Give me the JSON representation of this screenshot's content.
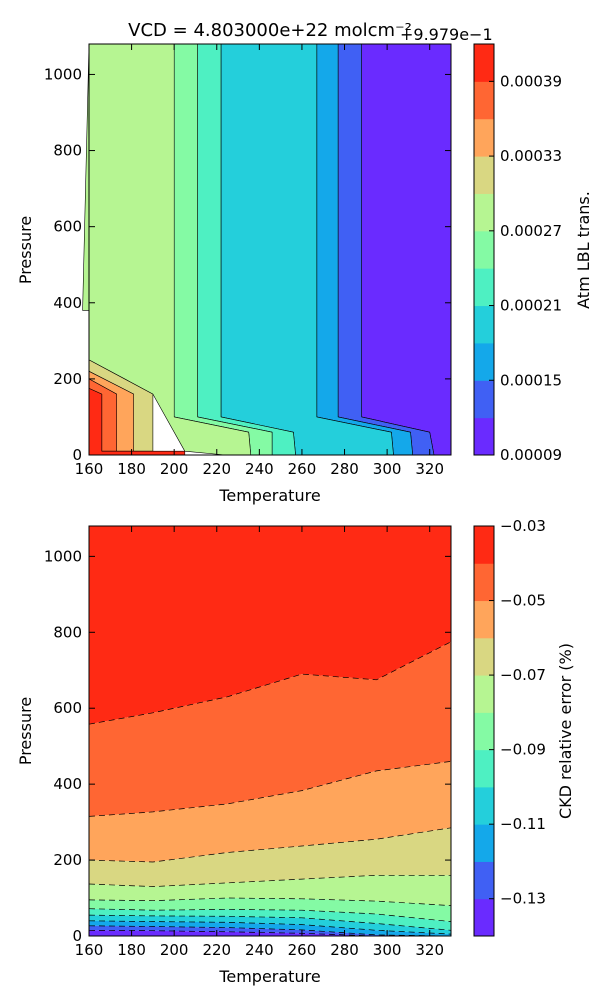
{
  "chart_data": [
    {
      "type": "heatmap",
      "title": "VCD = 4.803000e+22 molcm⁻²",
      "xlabel": "Temperature",
      "ylabel": "Pressure",
      "xlim": [
        160,
        330
      ],
      "ylim": [
        0,
        1080
      ],
      "xticks": [
        "160",
        "180",
        "200",
        "220",
        "240",
        "260",
        "280",
        "300",
        "320"
      ],
      "yticks": [
        "0",
        "200",
        "400",
        "600",
        "800",
        "1000"
      ],
      "colorbar": {
        "label": "Atm LBL trans.",
        "offset_text": "+9.979e−1",
        "levels": [
          9e-05,
          0.00012,
          0.00015,
          0.00018,
          0.00021,
          0.00024,
          0.00027,
          0.0003,
          0.00033,
          0.00036,
          0.00039,
          0.00042
        ],
        "tick_labels": [
          "0.00009",
          "0.00015",
          "0.00021",
          "0.00027",
          "0.00033",
          "0.00039"
        ],
        "colors": [
          "#6a2bff",
          "#4060f4",
          "#14a8ea",
          "#24cfdb",
          "#4ef0c2",
          "#84faa4",
          "#b6f592",
          "#d9d782",
          "#ffa55b",
          "#ff6633",
          "#ff2a14"
        ]
      },
      "bands": [
        {
          "level": 9e-05,
          "color": "#6a2bff",
          "area": [
            [
              288,
              1080
            ],
            [
              330,
              1080
            ],
            [
              330,
              0
            ],
            [
              322,
              0
            ],
            [
              320,
              60
            ],
            [
              288,
              100
            ]
          ]
        },
        {
          "level": 0.00012,
          "color": "#4060f4",
          "area": [
            [
              277,
              1080
            ],
            [
              288,
              1080
            ],
            [
              288,
              100
            ],
            [
              320,
              60
            ],
            [
              322,
              0
            ],
            [
              312,
              0
            ],
            [
              311,
              60
            ],
            [
              277,
              100
            ]
          ]
        },
        {
          "level": 0.00015,
          "color": "#14a8ea",
          "area": [
            [
              267,
              1080
            ],
            [
              277,
              1080
            ],
            [
              277,
              100
            ],
            [
              311,
              60
            ],
            [
              312,
              0
            ],
            [
              303,
              0
            ],
            [
              302,
              60
            ],
            [
              267,
              100
            ]
          ]
        },
        {
          "level": 0.00018,
          "color": "#24cfdb",
          "area": [
            [
              222,
              1080
            ],
            [
              267,
              1080
            ],
            [
              267,
              100
            ],
            [
              302,
              60
            ],
            [
              303,
              0
            ],
            [
              257,
              0
            ],
            [
              256,
              60
            ],
            [
              222,
              100
            ]
          ]
        },
        {
          "level": 0.00021,
          "color": "#4ef0c2",
          "area": [
            [
              211,
              1080
            ],
            [
              222,
              1080
            ],
            [
              222,
              100
            ],
            [
              256,
              60
            ],
            [
              257,
              0
            ],
            [
              246,
              0
            ],
            [
              246,
              60
            ],
            [
              211,
              100
            ]
          ]
        },
        {
          "level": 0.00024,
          "color": "#84faa4",
          "area": [
            [
              200,
              1080
            ],
            [
              211,
              1080
            ],
            [
              211,
              100
            ],
            [
              246,
              60
            ],
            [
              246,
              0
            ],
            [
              236,
              0
            ],
            [
              235,
              60
            ],
            [
              200,
              100
            ]
          ]
        },
        {
          "level": 0.00027,
          "color": "#b6f592",
          "area": [
            [
              160,
              1080
            ],
            [
              200,
              1080
            ],
            [
              200,
              100
            ],
            [
              235,
              60
            ],
            [
              236,
              0
            ],
            [
              224,
              0
            ],
            [
              205,
              10
            ],
            [
              190,
              160
            ],
            [
              160,
              250
            ],
            [
              160,
              380
            ],
            [
              157,
              380
            ]
          ]
        },
        {
          "level": 0.0003,
          "color": "#d9d782",
          "area": [
            [
              160,
              250
            ],
            [
              190,
              160
            ],
            [
              190,
              10
            ],
            [
              181,
              10
            ],
            [
              181,
              160
            ],
            [
              160,
              220
            ]
          ]
        },
        {
          "level": 0.00033,
          "color": "#ffa55b",
          "area": [
            [
              160,
              220
            ],
            [
              181,
              160
            ],
            [
              181,
              10
            ],
            [
              173,
              10
            ],
            [
              173,
              160
            ],
            [
              160,
              200
            ]
          ]
        },
        {
          "level": 0.00036,
          "color": "#ff6633",
          "area": [
            [
              160,
              200
            ],
            [
              173,
              160
            ],
            [
              173,
              10
            ],
            [
              166,
              10
            ],
            [
              166,
              160
            ],
            [
              160,
              175
            ]
          ]
        },
        {
          "level": 0.00039,
          "color": "#ff2a14",
          "area": [
            [
              160,
              175
            ],
            [
              166,
              160
            ],
            [
              166,
              10
            ],
            [
              205,
              10
            ],
            [
              205,
              0
            ],
            [
              160,
              0
            ]
          ]
        }
      ]
    },
    {
      "type": "heatmap",
      "xlabel": "Temperature",
      "ylabel": "Pressure",
      "xlim": [
        160,
        330
      ],
      "ylim": [
        0,
        1080
      ],
      "xticks": [
        "160",
        "180",
        "200",
        "220",
        "240",
        "260",
        "280",
        "300",
        "320"
      ],
      "yticks": [
        "0",
        "200",
        "400",
        "600",
        "800",
        "1000"
      ],
      "x": [
        160,
        190,
        225,
        260,
        295,
        330
      ],
      "colorbar": {
        "label": "CKD relative error (%)",
        "levels": [
          -0.14,
          -0.13,
          -0.12,
          -0.11,
          -0.1,
          -0.09,
          -0.08,
          -0.07,
          -0.06,
          -0.05,
          -0.04,
          -0.03
        ],
        "tick_labels": [
          "−0.13",
          "−0.11",
          "−0.09",
          "−0.07",
          "−0.05",
          "−0.03"
        ],
        "colors": [
          "#6a2bff",
          "#4060f4",
          "#14a8ea",
          "#24cfdb",
          "#4ef0c2",
          "#84faa4",
          "#b6f592",
          "#d9d782",
          "#ffa55b",
          "#ff6633",
          "#ff2a14"
        ]
      },
      "contours": [
        {
          "level": -0.04,
          "y": [
            558,
            588,
            630,
            690,
            675,
            775
          ]
        },
        {
          "level": -0.05,
          "y": [
            315,
            327,
            348,
            383,
            435,
            460
          ]
        },
        {
          "level": -0.06,
          "y": [
            200,
            195,
            220,
            237,
            255,
            285
          ]
        },
        {
          "level": -0.07,
          "y": [
            137,
            130,
            140,
            150,
            160,
            160
          ]
        },
        {
          "level": -0.08,
          "y": [
            95,
            93,
            100,
            98,
            92,
            80
          ]
        },
        {
          "level": -0.09,
          "y": [
            72,
            68,
            70,
            68,
            58,
            38
          ]
        },
        {
          "level": -0.1,
          "y": [
            55,
            53,
            52,
            48,
            33,
            15
          ]
        },
        {
          "level": -0.11,
          "y": [
            40,
            38,
            36,
            30,
            15,
            5
          ]
        },
        {
          "level": -0.12,
          "y": [
            27,
            25,
            22,
            16,
            3,
            0
          ]
        },
        {
          "level": -0.13,
          "y": [
            15,
            14,
            11,
            7,
            0,
            0
          ]
        }
      ]
    }
  ]
}
